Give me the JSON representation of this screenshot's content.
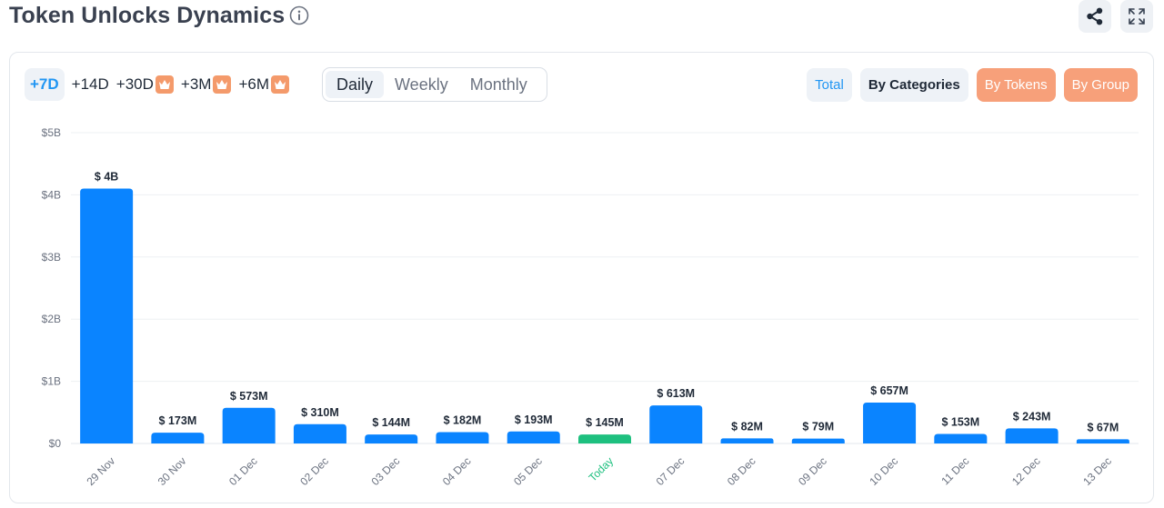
{
  "header": {
    "title": "Token Unlocks Dynamics",
    "icons": {
      "info": "info-icon",
      "share": "share-icon",
      "expand": "expand-icon"
    }
  },
  "range_tabs": [
    {
      "label": "+7D",
      "active": true,
      "premium": false
    },
    {
      "label": "+14D",
      "active": false,
      "premium": false
    },
    {
      "label": "+30D",
      "active": false,
      "premium": true
    },
    {
      "label": "+3M",
      "active": false,
      "premium": true
    },
    {
      "label": "+6M",
      "active": false,
      "premium": true
    }
  ],
  "period_tabs": [
    {
      "label": "Daily",
      "active": true
    },
    {
      "label": "Weekly",
      "active": false
    },
    {
      "label": "Monthly",
      "active": false
    }
  ],
  "view_buttons": {
    "total": "Total",
    "by_categories": "By Categories",
    "by_tokens": "By Tokens",
    "by_group": "By Group"
  },
  "colors": {
    "bar": "#0a84ff",
    "today_bar": "#1ec07f",
    "today_label": "#1ec07f",
    "accent": "#2196f3",
    "premium": "#f49a6b"
  },
  "chart_data": {
    "type": "bar",
    "categories": [
      "29 Nov",
      "30 Nov",
      "01 Dec",
      "02 Dec",
      "03 Dec",
      "04 Dec",
      "05 Dec",
      "Today",
      "07 Dec",
      "08 Dec",
      "09 Dec",
      "10 Dec",
      "11 Dec",
      "12 Dec",
      "13 Dec"
    ],
    "values": [
      4100000000,
      173000000,
      573000000,
      310000000,
      144000000,
      182000000,
      193000000,
      145000000,
      613000000,
      82000000,
      79000000,
      657000000,
      153000000,
      243000000,
      67000000
    ],
    "data_labels": [
      "$ 4B",
      "$ 173M",
      "$ 573M",
      "$ 310M",
      "$ 144M",
      "$ 182M",
      "$ 193M",
      "$ 145M",
      "$ 613M",
      "$ 82M",
      "$ 79M",
      "$ 657M",
      "$ 153M",
      "$ 243M",
      "$ 67M"
    ],
    "highlight_category": "Today",
    "y_ticks": [
      {
        "value": 0,
        "label": "$0"
      },
      {
        "value": 1000000000,
        "label": "$1B"
      },
      {
        "value": 2000000000,
        "label": "$2B"
      },
      {
        "value": 3000000000,
        "label": "$3B"
      },
      {
        "value": 4000000000,
        "label": "$4B"
      },
      {
        "value": 5000000000,
        "label": "$5B"
      }
    ],
    "ylim": [
      0,
      5000000000
    ],
    "grid": true,
    "title": "",
    "xlabel": "",
    "ylabel": ""
  }
}
